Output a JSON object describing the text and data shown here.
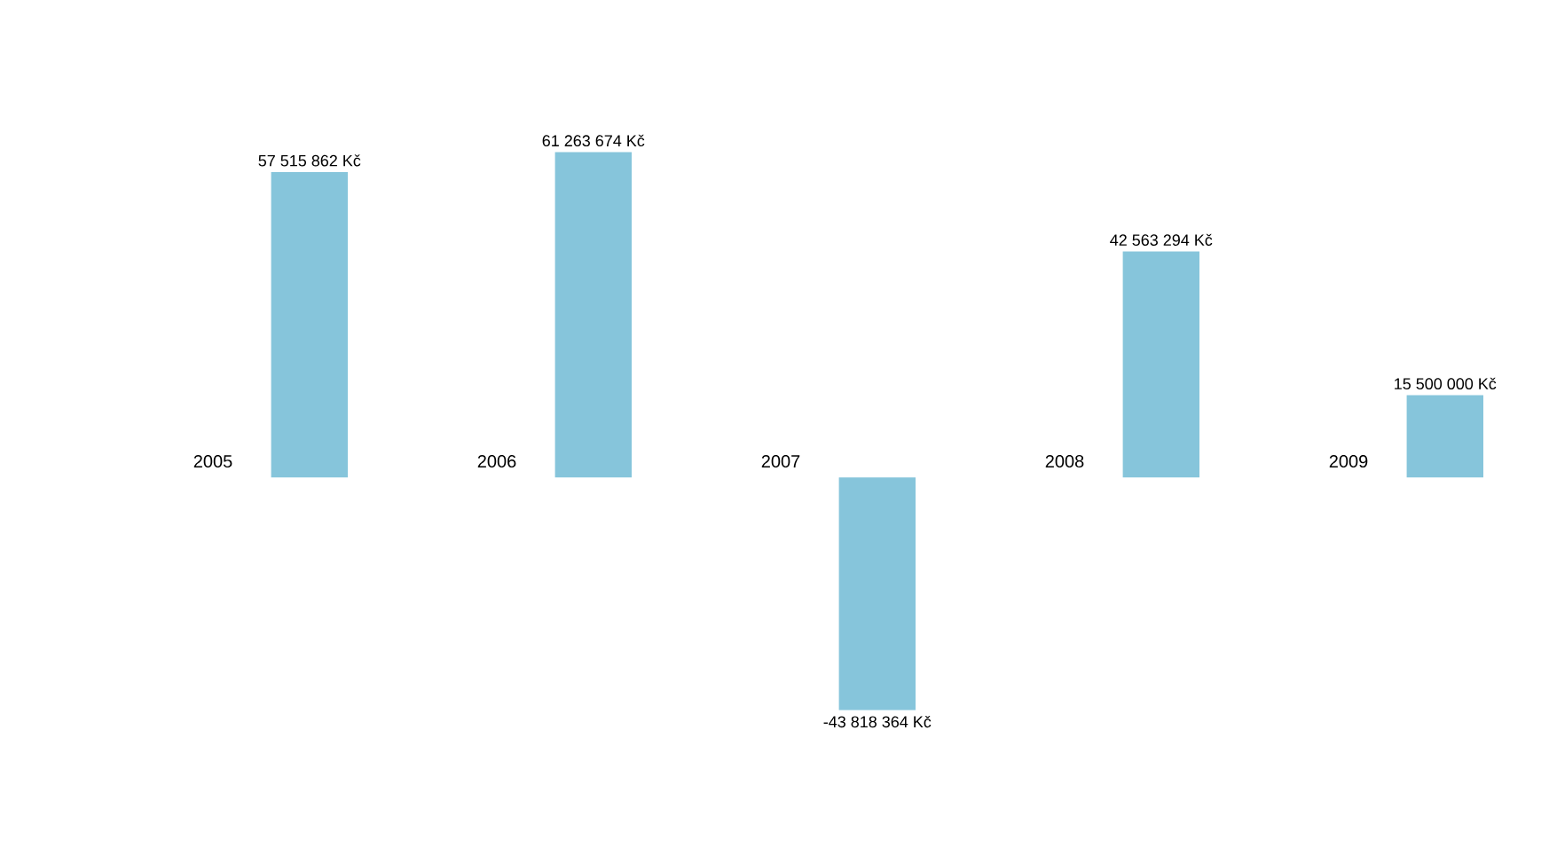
{
  "chart_data": {
    "type": "bar",
    "categories": [
      "2005",
      "2006",
      "2007",
      "2008",
      "2009"
    ],
    "series": [
      {
        "color": "#86c5db",
        "values": [
          57515862,
          61263674,
          -43818364,
          42563294,
          15500000
        ],
        "value_labels": [
          "57 515 862 Kč",
          "61 263 674 Kč",
          "-43 818 364 Kč",
          "42 563 294 Kč",
          "15 500 000 Kč"
        ]
      }
    ],
    "tick_labels": "x"
  }
}
